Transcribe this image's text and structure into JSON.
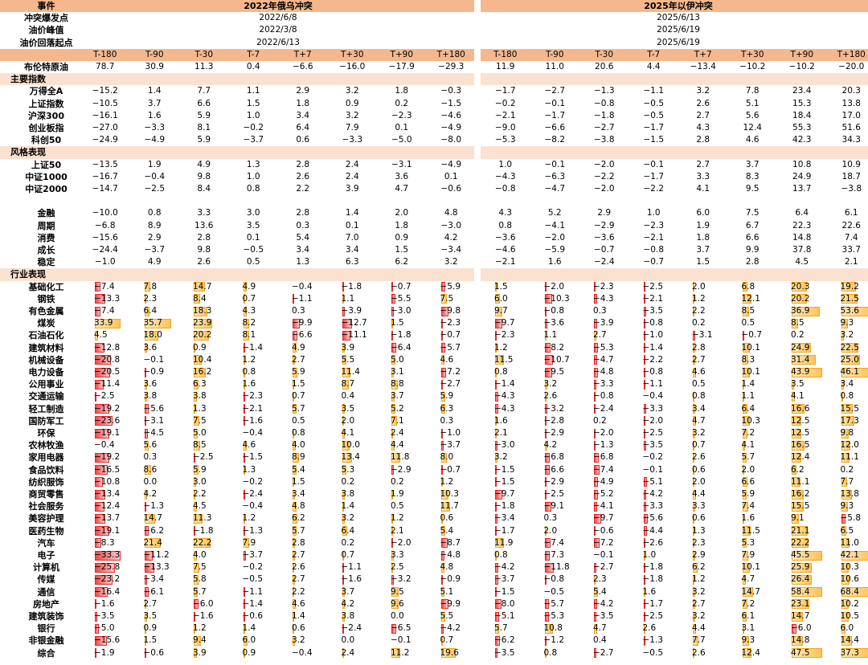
{
  "header": {
    "label": "事件",
    "event1": "2022年俄乌冲突",
    "event2": "2025年以伊冲突"
  },
  "meta_rows": [
    {
      "label": "冲突爆发点",
      "event1": "2022/6/8",
      "event2": "2025/6/13"
    },
    {
      "label": "油价峰值",
      "event1": "2022/3/8",
      "event2": "2025/6/19"
    },
    {
      "label": "油价回落起点",
      "event1": "2022/6/13",
      "event2": "2025/6/19"
    }
  ],
  "periods": [
    "T-180",
    "T-90",
    "T-30",
    "T-7",
    "T+7",
    "T+30",
    "T+90",
    "T+180"
  ],
  "oil_row": {
    "label": "布伦特原油",
    "event1": [
      78.7,
      30.9,
      11.3,
      0.4,
      -6.6,
      -16.0,
      -17.9,
      -29.3
    ],
    "event2": [
      11.9,
      11.0,
      20.6,
      4.4,
      -13.4,
      -10.2,
      -10.2,
      -20.0
    ]
  },
  "sections": [
    {
      "title": "主要指数",
      "rows": [
        {
          "label": "万得全A",
          "event1": [
            -15.2,
            1.4,
            7.7,
            1.1,
            2.9,
            3.2,
            1.8,
            -0.3
          ],
          "event2": [
            -1.7,
            -2.7,
            -1.3,
            -1.1,
            3.2,
            7.8,
            23.4,
            20.3
          ]
        },
        {
          "label": "上证指数",
          "event1": [
            -10.5,
            3.7,
            6.6,
            1.5,
            1.8,
            0.9,
            0.2,
            -1.5
          ],
          "event2": [
            -0.2,
            -0.1,
            -0.8,
            -0.5,
            2.6,
            5.1,
            15.3,
            13.8
          ]
        },
        {
          "label": "沪深300",
          "event1": [
            -16.1,
            1.6,
            5.9,
            1.0,
            3.4,
            3.2,
            -2.3,
            -4.6
          ],
          "event2": [
            -2.1,
            -1.7,
            -1.8,
            -0.5,
            2.7,
            5.6,
            18.4,
            17.0
          ]
        },
        {
          "label": "创业板指",
          "event1": [
            -27.0,
            -3.3,
            8.1,
            -0.2,
            6.4,
            7.9,
            0.1,
            -4.9
          ],
          "event2": [
            -9.0,
            -6.6,
            -2.7,
            -1.7,
            4.3,
            12.4,
            55.3,
            51.6
          ]
        },
        {
          "label": "科创50",
          "event1": [
            -24.9,
            -4.9,
            5.9,
            -3.7,
            0.6,
            -3.3,
            -5.0,
            -8.0
          ],
          "event2": [
            -5.3,
            -8.2,
            -3.8,
            -1.5,
            2.8,
            4.6,
            42.3,
            34.3
          ]
        }
      ]
    },
    {
      "title": "风格表现",
      "rows": [
        {
          "label": "上证50",
          "event1": [
            -13.5,
            1.9,
            4.9,
            1.3,
            2.8,
            2.4,
            -3.1,
            -4.9
          ],
          "event2": [
            1.0,
            -0.1,
            -2.0,
            -0.1,
            2.7,
            3.7,
            10.8,
            10.9
          ]
        },
        {
          "label": "中证1000",
          "event1": [
            -16.7,
            -0.4,
            9.8,
            1.0,
            2.6,
            2.4,
            3.6,
            0.1
          ],
          "event2": [
            -4.3,
            -6.3,
            -2.2,
            -1.7,
            3.3,
            8.3,
            24.9,
            18.7
          ]
        },
        {
          "label": "中证2000",
          "event1": [
            -14.7,
            -2.5,
            8.4,
            0.8,
            2.2,
            3.9,
            4.7,
            -0.6
          ],
          "event2": [
            -0.8,
            -4.7,
            -2.0,
            -2.2,
            4.1,
            9.5,
            13.7,
            -3.8
          ]
        },
        {
          "label": "",
          "event1": [],
          "event2": []
        },
        {
          "label": "金融",
          "event1": [
            -10.0,
            0.8,
            3.3,
            3.0,
            2.8,
            1.4,
            2.0,
            4.8
          ],
          "event2": [
            4.3,
            5.2,
            2.9,
            1.0,
            6.0,
            7.5,
            6.4,
            6.1
          ]
        },
        {
          "label": "周期",
          "event1": [
            -6.8,
            8.9,
            13.6,
            3.5,
            0.3,
            0.1,
            1.8,
            -3.0
          ],
          "event2": [
            0.8,
            -4.1,
            -2.9,
            -2.3,
            1.9,
            6.7,
            22.3,
            22.6
          ]
        },
        {
          "label": "消费",
          "event1": [
            -15.6,
            2.9,
            2.8,
            0.1,
            5.4,
            7.0,
            0.9,
            4.2
          ],
          "event2": [
            -3.6,
            -2.0,
            -3.6,
            -2.1,
            1.8,
            6.6,
            14.8,
            7.4
          ]
        },
        {
          "label": "成长",
          "event1": [
            -24.4,
            -3.7,
            9.8,
            -0.5,
            3.4,
            3.4,
            1.5,
            -3.4
          ],
          "event2": [
            -4.6,
            -5.9,
            -0.7,
            -0.8,
            3.7,
            9.9,
            37.8,
            33.7
          ]
        },
        {
          "label": "稳定",
          "event1": [
            -1.0,
            4.9,
            2.6,
            0.5,
            1.3,
            6.3,
            6.2,
            3.2
          ],
          "event2": [
            -2.1,
            1.6,
            -2.4,
            -0.7,
            1.5,
            2.8,
            4.5,
            2.1
          ]
        }
      ]
    },
    {
      "title": "行业表现",
      "bars": true,
      "rows": [
        {
          "label": "基础化工",
          "event1": [
            -7.4,
            7.8,
            14.7,
            4.9,
            -0.4,
            -1.8,
            -0.7,
            -5.9
          ],
          "event2": [
            1.5,
            -2.0,
            -2.3,
            -2.5,
            2.0,
            6.8,
            20.3,
            19.2
          ]
        },
        {
          "label": "钢铁",
          "event1": [
            -13.3,
            2.3,
            8.4,
            0.7,
            -1.1,
            1.1,
            -5.5,
            7.5
          ],
          "event2": [
            6.0,
            -10.3,
            -4.3,
            -2.1,
            1.2,
            12.1,
            20.2,
            21.5
          ]
        },
        {
          "label": "有色金属",
          "event1": [
            -7.4,
            6.4,
            18.3,
            4.3,
            0.3,
            -3.9,
            -3.0,
            -9.8
          ],
          "event2": [
            9.7,
            -0.8,
            0.3,
            -3.5,
            2.2,
            8.5,
            36.9,
            53.6
          ]
        },
        {
          "label": "煤炭",
          "event1": [
            33.9,
            35.7,
            23.9,
            8.2,
            -9.9,
            -12.7,
            1.5,
            -2.3
          ],
          "event2": [
            -9.7,
            -3.6,
            -3.9,
            -0.8,
            0.2,
            0.5,
            8.5,
            9.3
          ]
        },
        {
          "label": "石油石化",
          "event1": [
            4.5,
            18.0,
            20.2,
            8.1,
            -6.6,
            -11.1,
            -1.8,
            -0.7
          ],
          "event2": [
            -2.3,
            1.1,
            2.7,
            -1.0,
            -3.1,
            -0.7,
            0.2,
            3.2
          ]
        },
        {
          "label": "建筑材料",
          "event1": [
            -12.8,
            3.6,
            0.9,
            -1.4,
            4.9,
            3.9,
            -6.4,
            -5.7
          ],
          "event2": [
            1.2,
            -8.2,
            -5.3,
            -1.4,
            2.8,
            10.1,
            24.9,
            22.5
          ]
        },
        {
          "label": "机械设备",
          "event1": [
            -20.8,
            -0.1,
            10.4,
            1.2,
            2.7,
            5.5,
            5.0,
            4.6
          ],
          "event2": [
            11.5,
            -10.7,
            -4.7,
            -2.2,
            2.7,
            8.3,
            31.4,
            25.0
          ]
        },
        {
          "label": "电力设备",
          "event1": [
            -20.5,
            -0.9,
            16.2,
            0.8,
            5.9,
            11.4,
            3.1,
            -7.2
          ],
          "event2": [
            0.8,
            -9.5,
            -4.8,
            -0.8,
            4.6,
            10.1,
            43.9,
            46.1
          ]
        },
        {
          "label": "公用事业",
          "event1": [
            -11.4,
            3.6,
            6.3,
            1.6,
            1.5,
            8.7,
            8.8,
            -2.7
          ],
          "event2": [
            -1.4,
            3.2,
            -3.3,
            -1.1,
            0.5,
            1.4,
            3.5,
            3.4
          ]
        },
        {
          "label": "交通运输",
          "event1": [
            -2.5,
            3.8,
            3.8,
            -2.3,
            0.7,
            0.4,
            3.7,
            5.9
          ],
          "event2": [
            -4.3,
            2.6,
            -0.8,
            -0.4,
            0.8,
            1.1,
            4.1,
            0.8
          ]
        },
        {
          "label": "轻工制造",
          "event1": [
            -19.2,
            -5.6,
            1.3,
            -2.1,
            5.7,
            3.5,
            5.2,
            6.3
          ],
          "event2": [
            -4.3,
            -3.2,
            -2.4,
            -3.3,
            3.4,
            6.4,
            16.6,
            15.5
          ]
        },
        {
          "label": "国防军工",
          "event1": [
            -23.6,
            -3.1,
            7.5,
            -1.6,
            0.5,
            2.0,
            7.1,
            0.3
          ],
          "event2": [
            1.6,
            -2.8,
            0.2,
            -2.0,
            4.7,
            10.3,
            12.5,
            17.3
          ]
        },
        {
          "label": "环保",
          "event1": [
            -19.1,
            -4.5,
            5.0,
            -0.4,
            0.8,
            4.1,
            2.4,
            -1.0
          ],
          "event2": [
            2.1,
            -2.9,
            -2.0,
            -2.5,
            3.2,
            7.2,
            12.5,
            9.8
          ]
        },
        {
          "label": "农林牧渔",
          "event1": [
            -0.4,
            5.6,
            8.5,
            4.6,
            4.0,
            10.0,
            4.4,
            -3.7
          ],
          "event2": [
            -3.0,
            4.2,
            -1.3,
            -3.5,
            0.7,
            4.1,
            16.5,
            12.0
          ]
        },
        {
          "label": "家用电器",
          "event1": [
            -19.2,
            0.3,
            -2.5,
            -1.5,
            8.9,
            13.4,
            11.8,
            8.0
          ],
          "event2": [
            3.2,
            -6.8,
            -6.8,
            -0.2,
            2.6,
            5.7,
            12.4,
            11.1
          ]
        },
        {
          "label": "食品饮料",
          "event1": [
            -16.5,
            8.6,
            5.9,
            1.3,
            5.4,
            5.3,
            -2.9,
            -0.7
          ],
          "event2": [
            -1.5,
            -6.6,
            -7.4,
            -0.1,
            0.6,
            2.0,
            6.2,
            0.2
          ]
        },
        {
          "label": "纺织服饰",
          "event1": [
            -10.8,
            0.0,
            3.0,
            -0.2,
            1.5,
            0.2,
            0.2,
            1.2
          ],
          "event2": [
            -1.5,
            -2.9,
            -4.9,
            -5.1,
            2.0,
            6.6,
            11.1,
            7.7
          ]
        },
        {
          "label": "商贸零售",
          "event1": [
            -13.4,
            4.2,
            2.2,
            -2.4,
            3.4,
            3.8,
            1.9,
            10.3
          ],
          "event2": [
            -9.7,
            -2.5,
            -5.2,
            -4.2,
            4.4,
            5.9,
            16.2,
            13.8
          ]
        },
        {
          "label": "社会服务",
          "event1": [
            -12.4,
            -1.3,
            4.5,
            -0.4,
            4.8,
            1.4,
            0.5,
            11.7
          ],
          "event2": [
            -1.8,
            -9.1,
            -4.1,
            -3.3,
            3.3,
            7.4,
            15.5,
            9.3
          ]
        },
        {
          "label": "美容护理",
          "event1": [
            -13.7,
            14.7,
            11.3,
            1.2,
            6.2,
            3.2,
            1.2,
            0.6
          ],
          "event2": [
            -3.4,
            0.3,
            -9.7,
            -5.6,
            0.6,
            1.6,
            9.1,
            -5.8
          ]
        },
        {
          "label": "医药生物",
          "event1": [
            -19.1,
            -6.2,
            -1.8,
            -1.3,
            5.7,
            6.4,
            2.1,
            5.4
          ],
          "event2": [
            -1.7,
            2.0,
            -0.6,
            -4.4,
            1.3,
            11.5,
            21.1,
            6.5
          ]
        },
        {
          "label": "汽车",
          "event1": [
            -8.3,
            21.4,
            22.2,
            7.9,
            2.8,
            0.2,
            -2.0,
            -8.7
          ],
          "event2": [
            11.9,
            -7.4,
            -7.2,
            -2.6,
            2.3,
            5.3,
            22.2,
            11.0
          ]
        },
        {
          "label": "电子",
          "event1": [
            -33.3,
            -11.2,
            4.0,
            -3.7,
            2.7,
            0.7,
            3.3,
            -4.8
          ],
          "event2": [
            0.8,
            -7.3,
            -0.1,
            1.0,
            2.9,
            7.9,
            45.5,
            42.1
          ]
        },
        {
          "label": "计算机",
          "event1": [
            -25.8,
            -13.3,
            7.5,
            -0.2,
            2.6,
            -1.1,
            2.5,
            4.8
          ],
          "event2": [
            -4.2,
            -11.8,
            -2.7,
            -1.8,
            6.2,
            10.1,
            25.9,
            10.3
          ]
        },
        {
          "label": "传媒",
          "event1": [
            -23.2,
            -3.4,
            5.8,
            -0.5,
            2.7,
            -1.6,
            -3.2,
            -0.9
          ],
          "event2": [
            -3.7,
            -0.8,
            2.3,
            -1.8,
            1.2,
            4.7,
            26.4,
            10.6
          ]
        },
        {
          "label": "通信",
          "event1": [
            -16.4,
            -6.1,
            5.7,
            -1.1,
            2.2,
            3.7,
            9.5,
            5.1
          ],
          "event2": [
            -1.5,
            -0.5,
            5.4,
            1.6,
            3.2,
            14.7,
            58.4,
            68.4
          ]
        },
        {
          "label": "房地产",
          "event1": [
            -1.6,
            2.7,
            -6.0,
            -1.4,
            4.6,
            4.2,
            9.6,
            -9.9
          ],
          "event2": [
            -8.0,
            -5.7,
            -4.2,
            -1.7,
            2.7,
            7.2,
            23.1,
            10.2
          ]
        },
        {
          "label": "建筑装饰",
          "event1": [
            -3.5,
            3.5,
            -1.6,
            -0.6,
            1.4,
            3.8,
            0.0,
            5.5
          ],
          "event2": [
            -5.1,
            -5.3,
            -3.5,
            -2.5,
            3.2,
            6.1,
            14.7,
            10.5
          ]
        },
        {
          "label": "银行",
          "event1": [
            -5.0,
            0.9,
            1.2,
            1.4,
            0.6,
            -2.4,
            -6.5,
            -4.2
          ],
          "event2": [
            5.7,
            10.8,
            4.7,
            2.6,
            4.4,
            3.1,
            -6.0,
            6.0
          ]
        },
        {
          "label": "非银金融",
          "event1": [
            -15.6,
            1.5,
            9.4,
            6.0,
            3.2,
            0.0,
            -0.1,
            0.7
          ],
          "event2": [
            -6.2,
            -1.2,
            0.4,
            -1.3,
            7.7,
            9.3,
            14.8,
            14.4
          ]
        },
        {
          "label": "综合",
          "event1": [
            -1.9,
            -0.6,
            3.9,
            0.9,
            -0.4,
            2.4,
            11.2,
            19.6
          ],
          "event2": [
            -3.5,
            0.8,
            -2.7,
            -0.5,
            2.6,
            12.4,
            47.5,
            37.3
          ]
        }
      ]
    }
  ]
}
